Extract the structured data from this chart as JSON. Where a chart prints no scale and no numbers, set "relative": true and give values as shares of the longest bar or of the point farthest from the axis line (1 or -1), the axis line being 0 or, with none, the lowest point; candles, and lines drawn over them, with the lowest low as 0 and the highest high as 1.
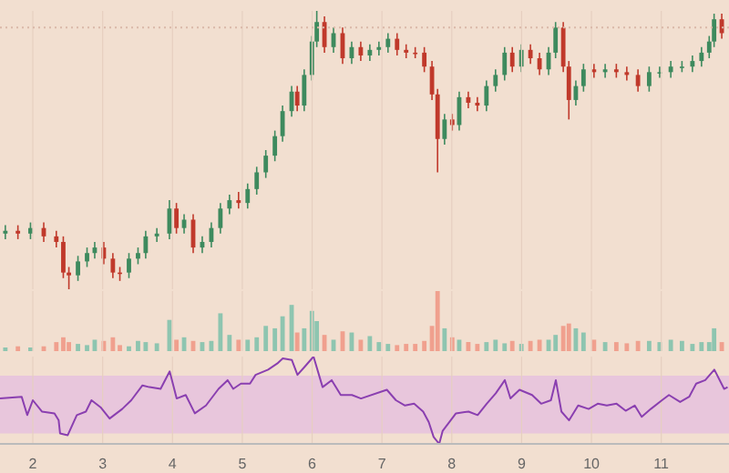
{
  "chart_data": [
    {
      "type": "candlestick",
      "relative": true,
      "xlim": [
        1.53,
        11.97
      ],
      "xticks": [
        2,
        3,
        4,
        5,
        6,
        7,
        8,
        9,
        10,
        11
      ],
      "tick_labels": false,
      "grid": "x",
      "x": [
        1.61,
        1.79,
        1.97,
        2.16,
        2.34,
        2.44,
        2.52,
        2.65,
        2.78,
        2.89,
        3.02,
        3.15,
        3.25,
        3.38,
        3.51,
        3.62,
        3.78,
        3.96,
        4.06,
        4.17,
        4.3,
        4.43,
        4.56,
        4.69,
        4.82,
        4.95,
        5.08,
        5.21,
        5.34,
        5.47,
        5.58,
        5.71,
        5.79,
        5.89,
        6.0,
        6.07,
        6.18,
        6.31,
        6.44,
        6.57,
        6.7,
        6.83,
        6.96,
        7.09,
        7.22,
        7.35,
        7.48,
        7.61,
        7.72,
        7.8,
        7.9,
        8.01,
        8.11,
        8.24,
        8.37,
        8.5,
        8.63,
        8.76,
        8.87,
        9.0,
        9.13,
        9.26,
        9.39,
        9.49,
        9.6,
        9.68,
        9.78,
        9.89,
        10.04,
        10.2,
        10.36,
        10.51,
        10.67,
        10.83,
        10.98,
        11.14,
        11.3,
        11.45,
        11.58,
        11.69,
        11.76,
        11.87
      ],
      "ohlc": [
        [
          0.2,
          0.23,
          0.18,
          0.21
        ],
        [
          0.21,
          0.23,
          0.18,
          0.2
        ],
        [
          0.2,
          0.24,
          0.18,
          0.22
        ],
        [
          0.22,
          0.24,
          0.17,
          0.19
        ],
        [
          0.19,
          0.21,
          0.15,
          0.17
        ],
        [
          0.17,
          0.19,
          0.04,
          0.06
        ],
        [
          0.06,
          0.08,
          0,
          0.05
        ],
        [
          0.05,
          0.12,
          0.03,
          0.1
        ],
        [
          0.1,
          0.15,
          0.08,
          0.13
        ],
        [
          0.13,
          0.17,
          0.11,
          0.15
        ],
        [
          0.15,
          0.17,
          0.09,
          0.11
        ],
        [
          0.11,
          0.13,
          0.04,
          0.06
        ],
        [
          0.06,
          0.08,
          0.03,
          0.06
        ],
        [
          0.06,
          0.13,
          0.04,
          0.11
        ],
        [
          0.11,
          0.15,
          0.09,
          0.13
        ],
        [
          0.13,
          0.21,
          0.11,
          0.19
        ],
        [
          0.19,
          0.22,
          0.17,
          0.2
        ],
        [
          0.2,
          0.32,
          0.18,
          0.29
        ],
        [
          0.29,
          0.31,
          0.2,
          0.22
        ],
        [
          0.22,
          0.27,
          0.2,
          0.25
        ],
        [
          0.25,
          0.27,
          0.13,
          0.15
        ],
        [
          0.15,
          0.19,
          0.13,
          0.17
        ],
        [
          0.17,
          0.24,
          0.15,
          0.22
        ],
        [
          0.22,
          0.31,
          0.2,
          0.29
        ],
        [
          0.29,
          0.34,
          0.27,
          0.32
        ],
        [
          0.32,
          0.35,
          0.29,
          0.31
        ],
        [
          0.31,
          0.38,
          0.29,
          0.36
        ],
        [
          0.36,
          0.44,
          0.34,
          0.42
        ],
        [
          0.42,
          0.5,
          0.4,
          0.48
        ],
        [
          0.48,
          0.57,
          0.46,
          0.55
        ],
        [
          0.55,
          0.66,
          0.53,
          0.64
        ],
        [
          0.64,
          0.73,
          0.62,
          0.71
        ],
        [
          0.71,
          0.73,
          0.64,
          0.66
        ],
        [
          0.66,
          0.79,
          0.64,
          0.77
        ],
        [
          0.77,
          0.91,
          0.75,
          0.89
        ],
        [
          0.89,
          1,
          0.87,
          0.96
        ],
        [
          0.96,
          0.98,
          0.85,
          0.87
        ],
        [
          0.87,
          0.94,
          0.85,
          0.92
        ],
        [
          0.92,
          0.94,
          0.81,
          0.83
        ],
        [
          0.83,
          0.89,
          0.81,
          0.87
        ],
        [
          0.87,
          0.89,
          0.82,
          0.84
        ],
        [
          0.84,
          0.88,
          0.82,
          0.86
        ],
        [
          0.86,
          0.89,
          0.84,
          0.87
        ],
        [
          0.87,
          0.92,
          0.85,
          0.9
        ],
        [
          0.9,
          0.92,
          0.84,
          0.86
        ],
        [
          0.86,
          0.88,
          0.83,
          0.85
        ],
        [
          0.85,
          0.87,
          0.83,
          0.85
        ],
        [
          0.85,
          0.87,
          0.78,
          0.8
        ],
        [
          0.8,
          0.82,
          0.68,
          0.7
        ],
        [
          0.7,
          0.72,
          0.42,
          0.54
        ],
        [
          0.54,
          0.63,
          0.52,
          0.61
        ],
        [
          0.61,
          0.63,
          0.57,
          0.59
        ],
        [
          0.59,
          0.71,
          0.57,
          0.69
        ],
        [
          0.69,
          0.71,
          0.65,
          0.67
        ],
        [
          0.67,
          0.69,
          0.64,
          0.66
        ],
        [
          0.66,
          0.75,
          0.64,
          0.73
        ],
        [
          0.73,
          0.79,
          0.71,
          0.77
        ],
        [
          0.77,
          0.87,
          0.75,
          0.85
        ],
        [
          0.85,
          0.87,
          0.78,
          0.8
        ],
        [
          0.8,
          0.88,
          0.78,
          0.86
        ],
        [
          0.86,
          0.88,
          0.81,
          0.83
        ],
        [
          0.83,
          0.85,
          0.77,
          0.79
        ],
        [
          0.79,
          0.87,
          0.77,
          0.85
        ],
        [
          0.85,
          0.96,
          0.83,
          0.94
        ],
        [
          0.94,
          0.96,
          0.78,
          0.8
        ],
        [
          0.8,
          0.82,
          0.61,
          0.68
        ],
        [
          0.68,
          0.75,
          0.66,
          0.73
        ],
        [
          0.73,
          0.81,
          0.71,
          0.79
        ],
        [
          0.79,
          0.81,
          0.76,
          0.78
        ],
        [
          0.78,
          0.81,
          0.76,
          0.79
        ],
        [
          0.79,
          0.81,
          0.76,
          0.78
        ],
        [
          0.78,
          0.8,
          0.75,
          0.77
        ],
        [
          0.77,
          0.79,
          0.71,
          0.73
        ],
        [
          0.73,
          0.8,
          0.71,
          0.78
        ],
        [
          0.78,
          0.8,
          0.76,
          0.78
        ],
        [
          0.78,
          0.82,
          0.76,
          0.8
        ],
        [
          0.8,
          0.82,
          0.78,
          0.8
        ],
        [
          0.8,
          0.84,
          0.78,
          0.82
        ],
        [
          0.82,
          0.87,
          0.8,
          0.85
        ],
        [
          0.85,
          0.91,
          0.83,
          0.89
        ],
        [
          0.89,
          0.99,
          0.87,
          0.97
        ],
        [
          0.97,
          0.99,
          0.9,
          0.92
        ]
      ],
      "colors": [
        "#3e8a5e",
        "#c0392b",
        "#3e8a5e",
        "#c0392b",
        "#c0392b",
        "#c0392b",
        "#c0392b",
        "#3e8a5e",
        "#3e8a5e",
        "#3e8a5e",
        "#c0392b",
        "#c0392b",
        "#c0392b",
        "#3e8a5e",
        "#3e8a5e",
        "#3e8a5e",
        "#3e8a5e",
        "#3e8a5e",
        "#c0392b",
        "#3e8a5e",
        "#c0392b",
        "#3e8a5e",
        "#3e8a5e",
        "#3e8a5e",
        "#3e8a5e",
        "#c0392b",
        "#3e8a5e",
        "#3e8a5e",
        "#3e8a5e",
        "#3e8a5e",
        "#3e8a5e",
        "#3e8a5e",
        "#c0392b",
        "#3e8a5e",
        "#3e8a5e",
        "#3e8a5e",
        "#c0392b",
        "#3e8a5e",
        "#c0392b",
        "#3e8a5e",
        "#c0392b",
        "#3e8a5e",
        "#3e8a5e",
        "#3e8a5e",
        "#c0392b",
        "#c0392b",
        "#c0392b",
        "#c0392b",
        "#c0392b",
        "#c0392b",
        "#3e8a5e",
        "#c0392b",
        "#3e8a5e",
        "#c0392b",
        "#c0392b",
        "#3e8a5e",
        "#3e8a5e",
        "#3e8a5e",
        "#c0392b",
        "#3e8a5e",
        "#c0392b",
        "#c0392b",
        "#3e8a5e",
        "#3e8a5e",
        "#c0392b",
        "#c0392b",
        "#3e8a5e",
        "#3e8a5e",
        "#c0392b",
        "#3e8a5e",
        "#c0392b",
        "#c0392b",
        "#c0392b",
        "#3e8a5e",
        "#3e8a5e",
        "#3e8a5e",
        "#3e8a5e",
        "#3e8a5e",
        "#3e8a5e",
        "#3e8a5e",
        "#3e8a5e",
        "#c0392b"
      ],
      "ref_lines": [
        {
          "axis": "y",
          "value": 0.94,
          "color": "#d9b8a8",
          "line_style": "dotted"
        }
      ]
    },
    {
      "type": "bar",
      "relative": true,
      "xlim": [
        1.53,
        11.97
      ],
      "xticks": [
        2,
        3,
        4,
        5,
        6,
        7,
        8,
        9,
        10,
        11
      ],
      "tick_labels": false,
      "grid": "x",
      "x": [
        1.61,
        1.79,
        1.97,
        2.16,
        2.34,
        2.44,
        2.52,
        2.65,
        2.78,
        2.89,
        3.02,
        3.15,
        3.25,
        3.38,
        3.51,
        3.62,
        3.78,
        3.96,
        4.06,
        4.17,
        4.3,
        4.43,
        4.56,
        4.69,
        4.82,
        4.95,
        5.08,
        5.21,
        5.34,
        5.47,
        5.58,
        5.71,
        5.79,
        5.89,
        6.0,
        6.07,
        6.18,
        6.31,
        6.44,
        6.57,
        6.7,
        6.83,
        6.96,
        7.09,
        7.22,
        7.35,
        7.48,
        7.61,
        7.72,
        7.8,
        7.9,
        8.01,
        8.11,
        8.24,
        8.37,
        8.5,
        8.63,
        8.76,
        8.87,
        9.0,
        9.13,
        9.26,
        9.39,
        9.49,
        9.6,
        9.68,
        9.78,
        9.89,
        10.04,
        10.2,
        10.36,
        10.51,
        10.67,
        10.83,
        10.98,
        11.14,
        11.3,
        11.45,
        11.58,
        11.69,
        11.76,
        11.87
      ],
      "values": [
        0.06,
        0.08,
        0.06,
        0.08,
        0.15,
        0.23,
        0.15,
        0.12,
        0.1,
        0.19,
        0.17,
        0.23,
        0.1,
        0.08,
        0.17,
        0.15,
        0.13,
        0.52,
        0.19,
        0.23,
        0.17,
        0.15,
        0.17,
        0.63,
        0.27,
        0.19,
        0.19,
        0.23,
        0.42,
        0.38,
        0.58,
        0.77,
        0.31,
        0.38,
        0.67,
        0.5,
        0.27,
        0.19,
        0.33,
        0.31,
        0.19,
        0.25,
        0.15,
        0.12,
        0.1,
        0.12,
        0.12,
        0.17,
        0.42,
        1,
        0.38,
        0.23,
        0.19,
        0.15,
        0.12,
        0.15,
        0.19,
        0.13,
        0.17,
        0.12,
        0.17,
        0.19,
        0.19,
        0.27,
        0.42,
        0.46,
        0.38,
        0.31,
        0.19,
        0.15,
        0.15,
        0.13,
        0.17,
        0.17,
        0.15,
        0.19,
        0.17,
        0.12,
        0.15,
        0.15,
        0.38,
        0.15
      ],
      "colors": [
        "#8ec5b0",
        "#f0a08e",
        "#8ec5b0",
        "#f0a08e",
        "#f0a08e",
        "#f0a08e",
        "#f0a08e",
        "#8ec5b0",
        "#8ec5b0",
        "#8ec5b0",
        "#f0a08e",
        "#f0a08e",
        "#f0a08e",
        "#8ec5b0",
        "#8ec5b0",
        "#8ec5b0",
        "#8ec5b0",
        "#8ec5b0",
        "#f0a08e",
        "#8ec5b0",
        "#f0a08e",
        "#8ec5b0",
        "#8ec5b0",
        "#8ec5b0",
        "#8ec5b0",
        "#f0a08e",
        "#8ec5b0",
        "#8ec5b0",
        "#8ec5b0",
        "#8ec5b0",
        "#8ec5b0",
        "#8ec5b0",
        "#f0a08e",
        "#8ec5b0",
        "#8ec5b0",
        "#8ec5b0",
        "#f0a08e",
        "#8ec5b0",
        "#f0a08e",
        "#8ec5b0",
        "#f0a08e",
        "#8ec5b0",
        "#8ec5b0",
        "#8ec5b0",
        "#f0a08e",
        "#f0a08e",
        "#f0a08e",
        "#f0a08e",
        "#f0a08e",
        "#f0a08e",
        "#8ec5b0",
        "#f0a08e",
        "#8ec5b0",
        "#f0a08e",
        "#f0a08e",
        "#8ec5b0",
        "#8ec5b0",
        "#8ec5b0",
        "#f0a08e",
        "#8ec5b0",
        "#f0a08e",
        "#f0a08e",
        "#8ec5b0",
        "#8ec5b0",
        "#f0a08e",
        "#f0a08e",
        "#8ec5b0",
        "#8ec5b0",
        "#f0a08e",
        "#8ec5b0",
        "#f0a08e",
        "#f0a08e",
        "#f0a08e",
        "#8ec5b0",
        "#8ec5b0",
        "#8ec5b0",
        "#8ec5b0",
        "#8ec5b0",
        "#8ec5b0",
        "#8ec5b0",
        "#8ec5b0",
        "#f0a08e"
      ]
    },
    {
      "type": "line",
      "relative": true,
      "xlim": [
        1.53,
        11.97
      ],
      "xticks": [
        2,
        3,
        4,
        5,
        6,
        7,
        8,
        9,
        10,
        11
      ],
      "tick_labels": "x",
      "grid": "x",
      "x": [
        1.53,
        1.84,
        1.92,
        2.0,
        2.13,
        2.31,
        2.37,
        2.39,
        2.5,
        2.63,
        2.76,
        2.84,
        2.97,
        3.1,
        3.28,
        3.41,
        3.57,
        3.67,
        3.83,
        3.96,
        4.06,
        4.19,
        4.32,
        4.48,
        4.66,
        4.79,
        4.87,
        4.98,
        5.11,
        5.19,
        5.37,
        5.5,
        5.58,
        5.71,
        5.79,
        5.89,
        6.02,
        6.15,
        6.28,
        6.41,
        6.57,
        6.7,
        7.07,
        7.2,
        7.33,
        7.46,
        7.59,
        7.67,
        7.74,
        7.82,
        7.87,
        8.06,
        8.24,
        8.37,
        8.5,
        8.63,
        8.76,
        8.84,
        8.97,
        9.15,
        9.28,
        9.42,
        9.49,
        9.57,
        9.68,
        9.81,
        9.96,
        10.09,
        10.22,
        10.36,
        10.49,
        10.62,
        10.72,
        10.85,
        11.01,
        11.11,
        11.27,
        11.4,
        11.5,
        11.63,
        11.76,
        11.9,
        11.95
      ],
      "series": [
        {
          "color": "#8a3fb0",
          "values": [
            0.52,
            0.54,
            0.33,
            0.5,
            0.37,
            0.35,
            0.27,
            0.12,
            0.1,
            0.33,
            0.37,
            0.5,
            0.42,
            0.29,
            0.4,
            0.5,
            0.67,
            0.65,
            0.63,
            0.83,
            0.52,
            0.56,
            0.35,
            0.44,
            0.63,
            0.73,
            0.63,
            0.69,
            0.69,
            0.79,
            0.85,
            0.92,
            0.98,
            0.96,
            0.79,
            0.88,
            1,
            0.65,
            0.73,
            0.56,
            0.56,
            0.52,
            0.62,
            0.5,
            0.44,
            0.46,
            0.37,
            0.25,
            0.08,
            0,
            0.15,
            0.35,
            0.37,
            0.33,
            0.46,
            0.58,
            0.73,
            0.52,
            0.62,
            0.56,
            0.46,
            0.5,
            0.73,
            0.37,
            0.27,
            0.44,
            0.4,
            0.46,
            0.44,
            0.46,
            0.38,
            0.44,
            0.31,
            0.4,
            0.5,
            0.56,
            0.48,
            0.54,
            0.69,
            0.73,
            0.85,
            0.63,
            0.65
          ]
        }
      ],
      "bands": [
        {
          "axis": "y",
          "from": 0.12,
          "to": 0.78,
          "color": "#e8c6dc"
        }
      ]
    }
  ]
}
